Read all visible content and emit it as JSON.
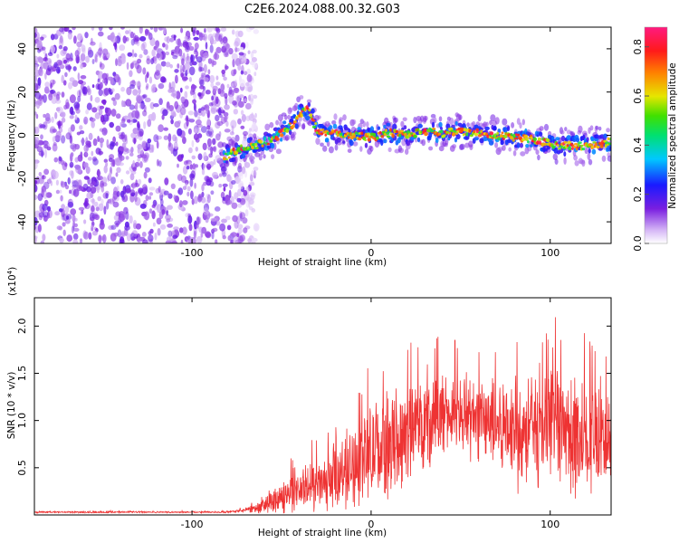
{
  "page_title": "C2E6.2024.088.00.32.G03",
  "colors": {
    "snr_line": "#ee3333",
    "spectrogram_low": "#7a1fe0",
    "spectrogram_high": "#ff2020"
  },
  "colorbar": {
    "label": "Normalized spectral amplitude",
    "ticks": [
      "0.0",
      "0.2",
      "0.4",
      "0.6",
      "0.8"
    ],
    "range": [
      0,
      0.88
    ],
    "colormap": "rainbow (purple-blue-cyan-green-yellow-red-magenta)"
  },
  "chart_data": [
    {
      "type": "heatmap",
      "title": "",
      "xlabel": "Height of straight line (km)",
      "ylabel": "Frequency (Hz)",
      "xlim": [
        -188,
        134
      ],
      "ylim": [
        -50,
        50
      ],
      "xticks": [
        -100,
        0,
        100
      ],
      "xtick_labels": [
        "-100",
        "0",
        "100"
      ],
      "yticks": [
        -40,
        -20,
        0,
        20,
        40
      ],
      "ytick_labels": [
        "-40",
        "-20",
        "0",
        "20",
        "40"
      ],
      "grid": false,
      "ridge": {
        "description": "Doppler-frequency track of the signal",
        "x": [
          -82,
          -75,
          -65,
          -55,
          -45,
          -40,
          -35,
          -30,
          -20,
          -10,
          0,
          10,
          20,
          30,
          40,
          50,
          60,
          70,
          80,
          90,
          100,
          110,
          120,
          134
        ],
        "y": [
          -10,
          -7,
          -5,
          -2,
          4,
          10,
          12,
          2,
          1,
          0,
          -1,
          1,
          0,
          2,
          1,
          2,
          1,
          0,
          -1,
          -2,
          -4,
          -5,
          -5,
          -3
        ],
        "peak_amplitude": 0.85
      },
      "noise_region": {
        "x_range": [
          -188,
          -70
        ],
        "amplitude": 0.1
      }
    },
    {
      "type": "line",
      "title": "",
      "xlabel": "Height of straight line (km)",
      "ylabel": "SNR (10 * v/v)",
      "y_multiplier_label": "(x10^4)",
      "xlim": [
        -188,
        134
      ],
      "ylim": [
        0,
        2.3
      ],
      "xticks": [
        -100,
        0,
        100
      ],
      "xtick_labels": [
        "-100",
        "0",
        "100"
      ],
      "yticks": [
        0.5,
        1.0,
        1.5,
        2.0
      ],
      "ytick_labels": [
        "0.5",
        "1.0",
        "1.5",
        "2.0"
      ],
      "grid": false,
      "series": [
        {
          "envelope_x": [
            -188,
            -80,
            -70,
            -60,
            -50,
            -40,
            -30,
            -20,
            -10,
            0,
            10,
            20,
            30,
            40,
            50,
            60,
            70,
            80,
            90,
            100,
            110,
            120,
            134
          ],
          "envelope_y": [
            0.03,
            0.03,
            0.05,
            0.1,
            0.2,
            0.28,
            0.3,
            0.38,
            0.55,
            0.65,
            0.75,
            0.9,
            1.0,
            1.05,
            1.05,
            1.05,
            0.95,
            0.95,
            0.9,
            0.9,
            0.85,
            0.85,
            0.85
          ],
          "envelope_amp": [
            0.01,
            0.01,
            0.03,
            0.12,
            0.22,
            0.3,
            0.32,
            0.4,
            0.55,
            0.6,
            0.6,
            0.6,
            0.55,
            0.55,
            0.5,
            0.55,
            0.6,
            0.8,
            0.7,
            0.7,
            0.9,
            0.75,
            0.55
          ]
        }
      ]
    }
  ]
}
